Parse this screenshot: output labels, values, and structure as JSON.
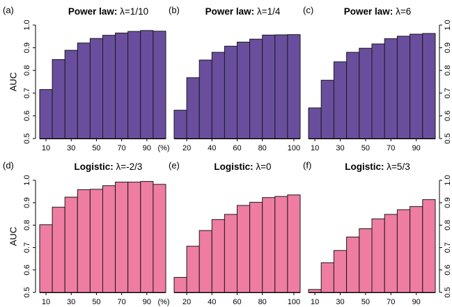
{
  "ylabel": "AUC",
  "y_ticks": [
    "0.5",
    "0.6",
    "0.7",
    "0.8",
    "0.9",
    "1.0"
  ],
  "colors": {
    "upper": "#6A4E9E",
    "lower": "#EF7DA1"
  },
  "chart_data": [
    {
      "type": "bar",
      "panel": "(a)",
      "title_bold": "Power law:",
      "title_rest": " λ=1/10",
      "x": [
        10,
        20,
        30,
        40,
        50,
        60,
        70,
        80,
        90,
        100
      ],
      "values": [
        0.716,
        0.848,
        0.889,
        0.921,
        0.941,
        0.955,
        0.965,
        0.972,
        0.976,
        0.973
      ],
      "x_tick_labels": [
        "10",
        "30",
        "50",
        "70",
        "90",
        "(%)"
      ],
      "ylim": [
        0.5,
        1.0
      ],
      "ylabel": "AUC",
      "y_axis_side": "left",
      "color": "#6A4E9E"
    },
    {
      "type": "bar",
      "panel": "(b)",
      "title_bold": "Power law:",
      "title_rest": " λ=1/4",
      "x": [
        10,
        20,
        30,
        40,
        50,
        60,
        70,
        80,
        90,
        100
      ],
      "values": [
        0.625,
        0.768,
        0.846,
        0.88,
        0.907,
        0.925,
        0.938,
        0.956,
        0.957,
        0.958
      ],
      "x_tick_labels": [
        "20",
        "40",
        "60",
        "80",
        "100"
      ],
      "ylim": [
        0.5,
        1.0
      ],
      "color": "#6A4E9E"
    },
    {
      "type": "bar",
      "panel": "(c)",
      "title_bold": "Power law:",
      "title_rest": " λ=6",
      "x": [
        10,
        20,
        30,
        40,
        50,
        60,
        70,
        80,
        90,
        100
      ],
      "values": [
        0.635,
        0.757,
        0.838,
        0.88,
        0.898,
        0.917,
        0.94,
        0.951,
        0.96,
        0.963
      ],
      "x_tick_labels": [
        "10",
        "30",
        "50",
        "70",
        "90"
      ],
      "ylim": [
        0.5,
        1.0
      ],
      "y_axis_side": "right",
      "color": "#6A4E9E"
    },
    {
      "type": "bar",
      "panel": "(d)",
      "title_bold": "Logistic:",
      "title_rest": " λ=-2/3",
      "x": [
        10,
        20,
        30,
        40,
        50,
        60,
        70,
        80,
        90,
        100
      ],
      "values": [
        0.802,
        0.88,
        0.925,
        0.958,
        0.96,
        0.976,
        0.992,
        0.992,
        0.995,
        0.982
      ],
      "x_tick_labels": [
        "10",
        "30",
        "50",
        "70",
        "90",
        "(%)"
      ],
      "ylim": [
        0.5,
        1.0
      ],
      "ylabel": "AUC",
      "y_axis_side": "left",
      "color": "#EF7DA1"
    },
    {
      "type": "bar",
      "panel": "(e)",
      "title_bold": "Logistic:",
      "title_rest": " λ=0",
      "x": [
        10,
        20,
        30,
        40,
        50,
        60,
        70,
        80,
        90,
        100
      ],
      "values": [
        0.567,
        0.706,
        0.776,
        0.825,
        0.848,
        0.888,
        0.902,
        0.923,
        0.928,
        0.935
      ],
      "x_tick_labels": [
        "20",
        "40",
        "60",
        "80",
        "100"
      ],
      "ylim": [
        0.5,
        1.0
      ],
      "color": "#EF7DA1"
    },
    {
      "type": "bar",
      "panel": "(f)",
      "title_bold": "Logistic:",
      "title_rest": " λ=5/3",
      "x": [
        10,
        20,
        30,
        40,
        50,
        60,
        70,
        80,
        90,
        100
      ],
      "values": [
        0.513,
        0.632,
        0.687,
        0.747,
        0.784,
        0.828,
        0.848,
        0.869,
        0.883,
        0.914
      ],
      "x_tick_labels": [
        "10",
        "30",
        "50",
        "70",
        "90"
      ],
      "ylim": [
        0.5,
        1.0
      ],
      "y_axis_side": "right",
      "color": "#EF7DA1"
    }
  ]
}
